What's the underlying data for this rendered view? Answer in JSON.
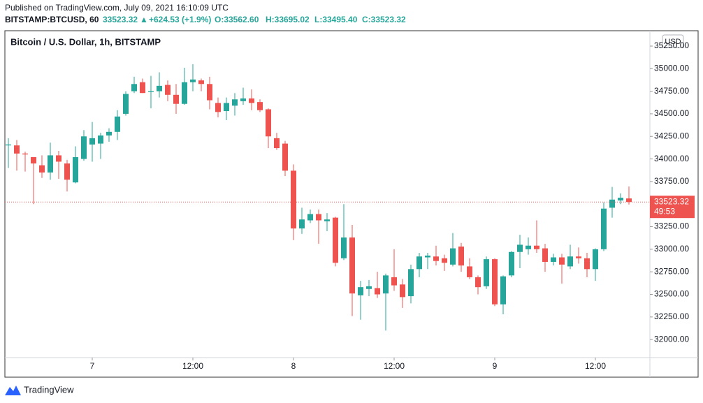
{
  "header": {
    "published": "Published on TradingView.com, July 09, 2021 16:10:09 UTC",
    "symbol": "BITSTAMP:BTCUSD, 60",
    "last": "33523.32",
    "arrow": "▲",
    "change": "+624.53 (+1.9%)",
    "o": "O:33562.60",
    "h": "H:33695.02",
    "l": "L:33495.40",
    "c": "C:33523.32"
  },
  "footer": {
    "brand": "TradingView"
  },
  "chart_data": {
    "type": "candlestick",
    "title": "Bitcoin / U.S. Dollar, 1h, BITSTAMP",
    "currency": "USD",
    "up_color": "#26a69a",
    "down_color": "#ef5350",
    "categories": [
      null,
      null,
      null,
      null,
      null,
      null,
      null,
      null,
      null,
      null,
      "7",
      null,
      null,
      null,
      null,
      null,
      null,
      null,
      null,
      null,
      null,
      null,
      "12:00",
      null,
      null,
      null,
      null,
      null,
      null,
      null,
      null,
      null,
      null,
      null,
      "8",
      null,
      null,
      null,
      null,
      null,
      null,
      null,
      null,
      null,
      null,
      null,
      "12:00",
      null,
      null,
      null,
      null,
      null,
      null,
      null,
      null,
      null,
      null,
      null,
      "9",
      null,
      null,
      null,
      null,
      null,
      null,
      null,
      null,
      null,
      null,
      null,
      "12:00",
      null,
      null,
      null,
      null
    ],
    "open": [
      34150,
      34150,
      34060,
      34020,
      33930,
      33850,
      34040,
      33950,
      33740,
      34000,
      34160,
      34170,
      34260,
      34300,
      34500,
      34750,
      34850,
      34740,
      34750,
      34820,
      34710,
      34610,
      34850,
      34870,
      34830,
      34620,
      34530,
      34590,
      34640,
      34670,
      34630,
      34550,
      34230,
      34170,
      33870,
      33230,
      33320,
      33390,
      33310,
      33350,
      32900,
      33130,
      32490,
      32560,
      32570,
      32510,
      32690,
      32610,
      32480,
      32780,
      32910,
      32920,
      32900,
      32830,
      33030,
      32810,
      32690,
      32590,
      32890,
      32390,
      32710,
      32970,
      33000,
      33040,
      33010,
      32860,
      32910,
      32810,
      32920,
      32900,
      32780,
      33000,
      33460,
      33540,
      33562.6
    ],
    "high": [
      34230,
      34210,
      34080,
      34020,
      34040,
      34180,
      34090,
      33990,
      34140,
      34320,
      34410,
      34290,
      34340,
      34540,
      34750,
      34910,
      34890,
      34920,
      34960,
      34870,
      34830,
      35010,
      35050,
      34890,
      34910,
      34680,
      34680,
      34730,
      34790,
      34770,
      34660,
      34560,
      34290,
      34200,
      33940,
      33460,
      33440,
      33440,
      33400,
      33360,
      33500,
      33270,
      32650,
      32660,
      32750,
      32730,
      33000,
      32670,
      32830,
      32960,
      32960,
      33040,
      32940,
      33180,
      33070,
      32900,
      32710,
      32920,
      32900,
      32710,
      32980,
      33160,
      33130,
      33320,
      33060,
      32950,
      32950,
      33050,
      33020,
      32960,
      33010,
      33520,
      33690,
      33620,
      33695.02
    ],
    "low": [
      33900,
      33870,
      33860,
      33500,
      33790,
      33770,
      33780,
      33640,
      33730,
      33980,
      33970,
      34000,
      34190,
      34210,
      34480,
      34730,
      34730,
      34560,
      34680,
      34640,
      34500,
      34600,
      34750,
      34750,
      34550,
      34460,
      34430,
      34480,
      34600,
      34540,
      34520,
      34120,
      34100,
      33810,
      33100,
      33170,
      33290,
      33060,
      33200,
      32810,
      32880,
      32260,
      32220,
      32480,
      32460,
      32100,
      32540,
      32350,
      32400,
      32690,
      32780,
      32820,
      32760,
      32810,
      32750,
      32670,
      32500,
      32560,
      32370,
      32280,
      32690,
      32790,
      32940,
      32960,
      32750,
      32820,
      32620,
      32780,
      32840,
      32690,
      32650,
      32980,
      33350,
      33500,
      33495.4
    ],
    "close": [
      34160,
      34060,
      34050,
      33950,
      33850,
      34040,
      33970,
      33770,
      34020,
      34250,
      34230,
      34260,
      34300,
      34470,
      34720,
      34830,
      34730,
      34750,
      34810,
      34710,
      34610,
      34850,
      34880,
      34830,
      34650,
      34520,
      34620,
      34660,
      34670,
      34620,
      34540,
      34250,
      34120,
      33870,
      33230,
      33330,
      33390,
      33320,
      33330,
      32850,
      33130,
      32510,
      32580,
      32590,
      32500,
      32710,
      32600,
      32470,
      32780,
      32920,
      32930,
      32870,
      32850,
      33010,
      32820,
      32690,
      32580,
      32890,
      32390,
      32700,
      32970,
      33050,
      33040,
      33000,
      32860,
      32910,
      32830,
      32920,
      32900,
      32780,
      33000,
      33450,
      33550,
      33570,
      33523.32
    ],
    "last_price": 33523.32,
    "countdown": "49:53",
    "ylim": [
      31800,
      35420
    ],
    "yticks": [
      {
        "value": 32000,
        "label": "32000.00"
      },
      {
        "value": 32250,
        "label": "32250.00"
      },
      {
        "value": 32500,
        "label": "32500.00"
      },
      {
        "value": 32750,
        "label": "32750.00"
      },
      {
        "value": 33000,
        "label": "33000.00"
      },
      {
        "value": 33250,
        "label": "33250.00"
      },
      {
        "value": 33500,
        "label": "33500.00"
      },
      {
        "value": 33750,
        "label": "33750.00"
      },
      {
        "value": 34000,
        "label": "34000.00"
      },
      {
        "value": 34250,
        "label": "34250.00"
      },
      {
        "value": 34500,
        "label": "34500.00"
      },
      {
        "value": 34750,
        "label": "34750.00"
      },
      {
        "value": 35000,
        "label": "35000.00"
      },
      {
        "value": 35250,
        "label": "35250.00"
      }
    ]
  }
}
